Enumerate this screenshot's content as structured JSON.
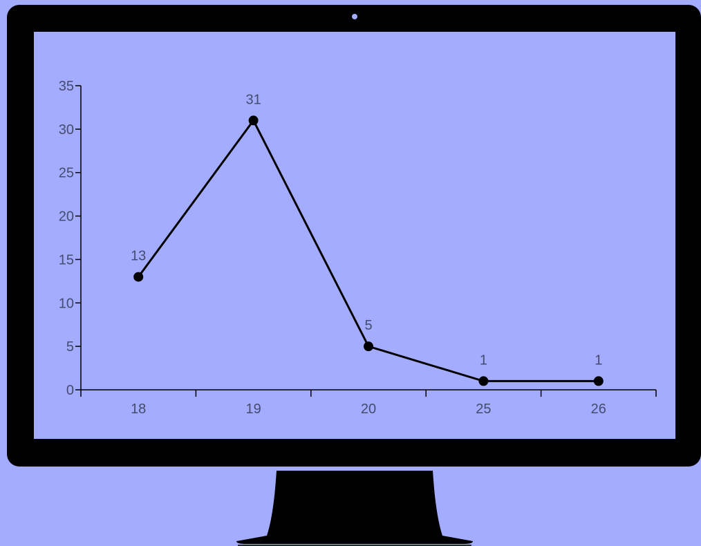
{
  "colors": {
    "background": "#a3acff",
    "frame": "#000000",
    "line": "#000000",
    "text": "#444b6e"
  },
  "chart_data": {
    "type": "line",
    "title": "",
    "xlabel": "",
    "ylabel": "",
    "categories": [
      "18",
      "19",
      "20",
      "25",
      "26"
    ],
    "values": [
      13,
      31,
      5,
      1,
      1
    ],
    "data_labels": [
      "13",
      "31",
      "5",
      "1",
      "1"
    ],
    "yticks": [
      "0",
      "5",
      "10",
      "15",
      "20",
      "25",
      "30",
      "35"
    ],
    "ylim": [
      0,
      35
    ],
    "grid": false,
    "legend": "none"
  }
}
